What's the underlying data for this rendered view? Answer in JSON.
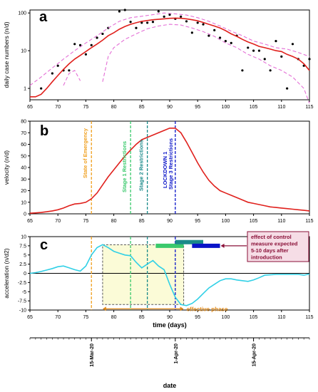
{
  "chart_data": [
    {
      "panel": "a",
      "type": "scatter",
      "scale": "log",
      "ylabel": "daily case numbers (n/d)",
      "xlim": [
        65,
        115
      ],
      "ylim": [
        0.5,
        120
      ],
      "xticks": [
        "65",
        "70",
        "75",
        "80",
        "85",
        "90",
        "95",
        "100",
        "105",
        "110",
        "115"
      ],
      "yticks": [
        "1",
        "10",
        "100"
      ],
      "series": [
        {
          "kind": "points",
          "color": "#000000",
          "x": [
            67,
            69,
            70,
            71,
            72,
            73,
            74,
            75,
            76,
            77,
            78,
            79,
            81,
            82,
            83,
            84,
            85,
            86,
            87,
            88,
            89,
            90,
            91,
            92,
            93,
            94,
            95,
            96,
            97,
            98,
            99,
            100,
            101,
            102,
            103,
            104,
            105,
            106,
            107,
            108,
            109,
            110,
            111,
            112,
            113,
            114,
            115
          ],
          "y": [
            1,
            2.5,
            4,
            3,
            3,
            15,
            14,
            8,
            14,
            22,
            28,
            40,
            110,
            120,
            58,
            40,
            55,
            55,
            58,
            110,
            80,
            90,
            70,
            80,
            60,
            30,
            55,
            50,
            25,
            35,
            22,
            18,
            16,
            25,
            3,
            12,
            10,
            10,
            6,
            3,
            18,
            7,
            1,
            15,
            6,
            4,
            6
          ]
        },
        {
          "kind": "fit",
          "color": "#e0201c",
          "x": [
            65,
            66,
            67,
            68,
            69,
            70,
            71,
            72,
            73,
            74,
            75,
            76,
            77,
            78,
            79,
            80,
            81,
            82,
            83,
            84,
            85,
            86,
            87,
            88,
            89,
            90,
            91,
            92,
            93,
            94,
            95,
            96,
            97,
            98,
            99,
            100,
            101,
            102,
            103,
            104,
            105,
            106,
            107,
            108,
            109,
            110,
            111,
            112,
            113,
            114,
            115
          ],
          "y": [
            0.6,
            0.6,
            0.7,
            1,
            1.5,
            2.2,
            3.2,
            4.5,
            6,
            7.5,
            9.5,
            12,
            15,
            19,
            25,
            30,
            37,
            44,
            50,
            55,
            60,
            63,
            66,
            68,
            70,
            72,
            73,
            72,
            70,
            66,
            62,
            56,
            50,
            45,
            40,
            34,
            28,
            24,
            20,
            17,
            15,
            13,
            12,
            11,
            10,
            9.5,
            8,
            7,
            6,
            4.5,
            3
          ]
        },
        {
          "kind": "ci",
          "color": "#e46fd6",
          "x": [
            65,
            67,
            69,
            71,
            73,
            75,
            77,
            79,
            81,
            83,
            85,
            87,
            89,
            91,
            93,
            95,
            97,
            99,
            101,
            103,
            105,
            107,
            109,
            111,
            113,
            115
          ],
          "y": [
            1.2,
            2,
            3.5,
            6,
            10,
            16,
            25,
            40,
            60,
            75,
            82,
            90,
            100,
            95,
            88,
            75,
            60,
            45,
            33,
            25,
            18,
            15,
            12,
            11,
            9,
            7
          ]
        },
        {
          "kind": "ci",
          "color": "#e46fd6",
          "x": [
            71,
            72,
            73,
            74
          ],
          "y": [
            1.2,
            2.5,
            3,
            1.6
          ]
        },
        {
          "kind": "ci",
          "color": "#e46fd6",
          "x": [
            78,
            79,
            80,
            82,
            84,
            86,
            88,
            90,
            92,
            94,
            96,
            98,
            100,
            102,
            104,
            106,
            108,
            110,
            112,
            114,
            115
          ],
          "y": [
            1.5,
            7,
            12,
            20,
            28,
            38,
            45,
            50,
            48,
            40,
            32,
            24,
            16,
            12,
            8,
            6,
            4,
            3,
            2,
            1,
            0.4
          ]
        }
      ]
    },
    {
      "panel": "b",
      "type": "line",
      "ylabel": "velocity (n/d)",
      "xlim": [
        65,
        115
      ],
      "ylim": [
        0,
        80
      ],
      "xticks": [
        "65",
        "70",
        "75",
        "80",
        "85",
        "90",
        "95",
        "100",
        "105",
        "110",
        "115"
      ],
      "yticks": [
        "0",
        "10",
        "20",
        "30",
        "40",
        "50",
        "60",
        "70",
        "80"
      ],
      "series": [
        {
          "kind": "line",
          "color": "#e0201c",
          "x": [
            65,
            66,
            67,
            68,
            69,
            70,
            71,
            72,
            73,
            74,
            75,
            76,
            77,
            78,
            79,
            80,
            81,
            82,
            83,
            84,
            85,
            86,
            87,
            88,
            89,
            90,
            91,
            92,
            93,
            94,
            95,
            96,
            97,
            98,
            99,
            100,
            101,
            102,
            103,
            104,
            105,
            106,
            107,
            108,
            109,
            110,
            111,
            112,
            113,
            114,
            115
          ],
          "y": [
            0.5,
            0.8,
            1.2,
            1.8,
            2.5,
            3.5,
            5,
            7,
            8.5,
            9,
            10,
            13,
            18,
            25,
            32,
            38,
            44,
            50,
            55,
            60,
            64,
            66,
            68,
            70,
            72,
            74,
            74,
            70,
            62,
            53,
            44,
            36,
            29,
            24,
            20,
            18,
            16,
            14,
            12,
            10,
            9,
            8,
            7,
            6,
            5.5,
            5,
            4.5,
            4,
            3.5,
            3,
            2.5
          ]
        }
      ],
      "vlines": [
        {
          "x": 76,
          "color": "#f0a020",
          "label": "State of Emergency"
        },
        {
          "x": 83,
          "color": "#3ac96c",
          "label": "Stage 1 Restrictions"
        },
        {
          "x": 86,
          "color": "#1a8a8a",
          "label": "Stage 2 Restrictions"
        },
        {
          "x": 91,
          "color": "#0a14c8",
          "label": "LOCKDOWN 1"
        },
        {
          "x": 91,
          "color": "#0a14c8",
          "label": "Stage 3 Restrictions"
        }
      ]
    },
    {
      "panel": "c",
      "type": "line",
      "ylabel": "acceleration (n/d2)",
      "xlabel": "time (days)",
      "xlim": [
        65,
        115
      ],
      "ylim": [
        -10,
        10
      ],
      "xticks": [
        "65",
        "70",
        "75",
        "80",
        "85",
        "90",
        "95",
        "100",
        "105",
        "110",
        "115"
      ],
      "yticks": [
        "-10",
        "-7.5",
        "-5",
        "-2.5",
        "0",
        "2.5",
        "5",
        "7.5",
        "10"
      ],
      "series": [
        {
          "kind": "line",
          "color": "#31d0e6",
          "x": [
            65,
            66,
            67,
            68,
            69,
            70,
            71,
            72,
            73,
            74,
            75,
            76,
            77,
            78,
            79,
            80,
            81,
            82,
            83,
            84,
            85,
            86,
            87,
            88,
            89,
            90,
            91,
            92,
            93,
            94,
            95,
            96,
            97,
            98,
            99,
            100,
            101,
            102,
            103,
            104,
            105,
            106,
            107,
            108,
            109,
            110,
            111,
            112,
            113,
            114,
            115
          ],
          "y": [
            0,
            0.2,
            0.5,
            0.9,
            1.3,
            1.8,
            2,
            1.5,
            1,
            0.6,
            2,
            5,
            7,
            7.8,
            7,
            6,
            5.5,
            5,
            4.8,
            3,
            1.5,
            2.5,
            3.5,
            2,
            1,
            -3,
            -6.5,
            -8.5,
            -8.8,
            -8.2,
            -7,
            -5.5,
            -4,
            -3,
            -2,
            -1.5,
            -1.5,
            -1.8,
            -2,
            -2.2,
            -1.8,
            -1.2,
            -0.5,
            -0.4,
            -0.3,
            -0.3,
            -0.3,
            -0.3,
            -0.3,
            -0.5,
            -0.2
          ]
        }
      ],
      "vlines": [
        {
          "x": 76,
          "color": "#f0a020"
        },
        {
          "x": 83,
          "color": "#3ac96c"
        },
        {
          "x": 86,
          "color": "#1a8a8a"
        },
        {
          "x": 91,
          "color": "#0a14c8"
        }
      ],
      "effective_window": {
        "x0": 78,
        "x1": 92.5,
        "y0": -8.5,
        "y1": 7.8,
        "label": "effective phase"
      },
      "bars": [
        {
          "x0": 87.5,
          "x1": 92.5,
          "y": 7.5,
          "color": "#3ac96c"
        },
        {
          "x0": 91,
          "x1": 96,
          "y": 8.5,
          "color": "#1a8a8a"
        },
        {
          "x0": 94,
          "x1": 99,
          "y": 7.5,
          "color": "#0a14c8"
        }
      ],
      "annotation": {
        "text": [
          "effect of control",
          "measure expected",
          "5-10 days after",
          "introduction"
        ],
        "color": "#8a1038",
        "fill": "#f6dde6"
      }
    }
  ],
  "date_axis": {
    "xlabel": "date",
    "ticks": [
      {
        "x": 76,
        "label": "15-Mar-20"
      },
      {
        "x": 91,
        "label": "1-Apr-20"
      },
      {
        "x": 105,
        "label": "15-Apr-20"
      }
    ]
  },
  "panel_letters": [
    "a",
    "b",
    "c"
  ]
}
